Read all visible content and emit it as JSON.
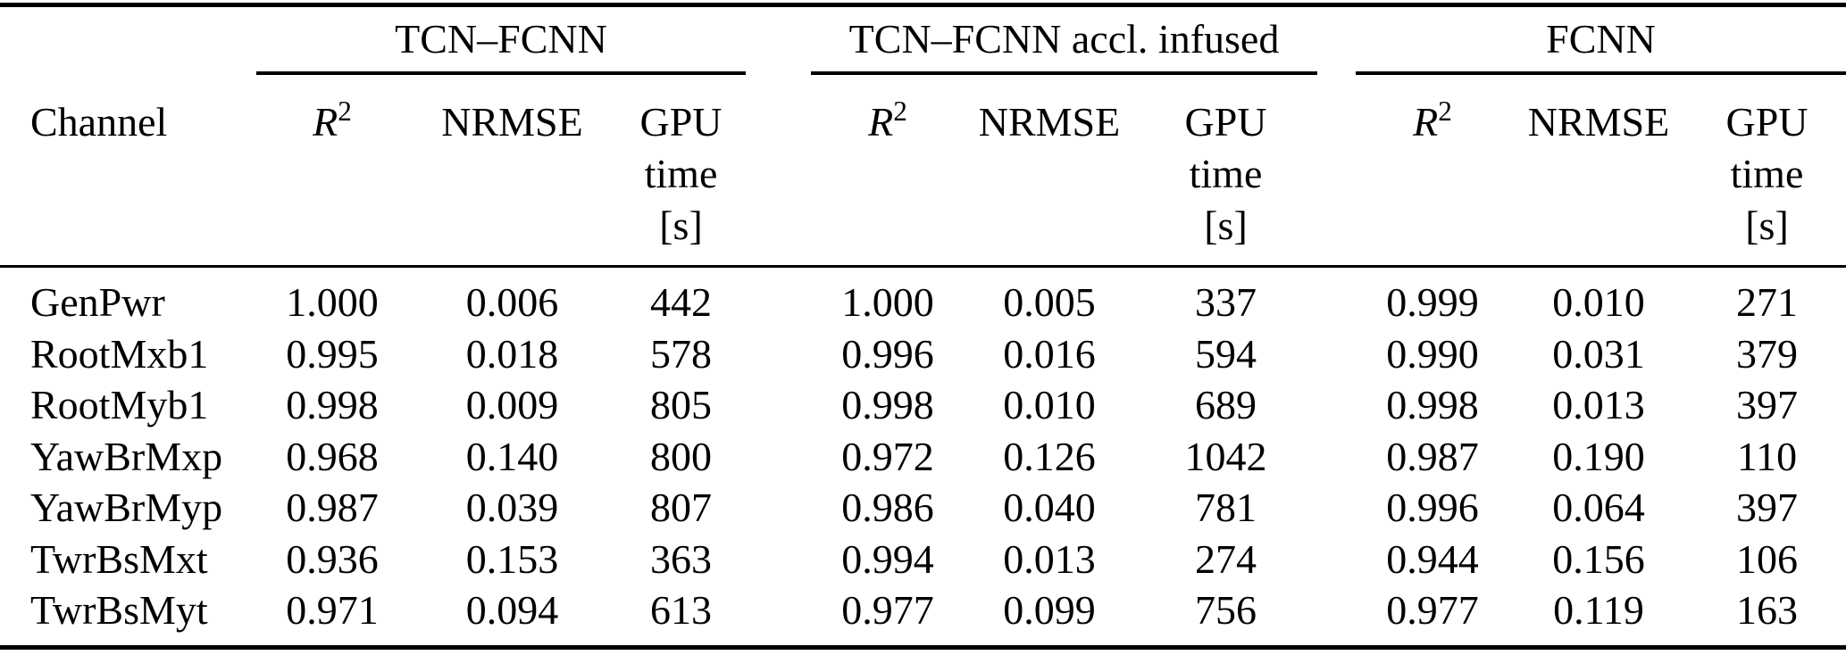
{
  "table": {
    "row_header": "Channel",
    "column_groups": [
      {
        "label": "TCN–FCNN"
      },
      {
        "label": "TCN–FCNN accl. infused"
      },
      {
        "label": "FCNN"
      }
    ],
    "sub_headers": {
      "r2_letter": "R",
      "r2_exponent": "2",
      "nrmse": "NRMSE",
      "gpu_line1": "GPU",
      "gpu_line2": "time",
      "gpu_line3": "[s]"
    },
    "rows": [
      {
        "channel": "GenPwr",
        "tcn_fcnn": {
          "r2": "1.000",
          "nrmse": "0.006",
          "gpu": "442"
        },
        "tcn_fcnn_accl": {
          "r2": "1.000",
          "nrmse": "0.005",
          "gpu": "337"
        },
        "fcnn": {
          "r2": "0.999",
          "nrmse": "0.010",
          "gpu": "271"
        }
      },
      {
        "channel": "RootMxb1",
        "tcn_fcnn": {
          "r2": "0.995",
          "nrmse": "0.018",
          "gpu": "578"
        },
        "tcn_fcnn_accl": {
          "r2": "0.996",
          "nrmse": "0.016",
          "gpu": "594"
        },
        "fcnn": {
          "r2": "0.990",
          "nrmse": "0.031",
          "gpu": "379"
        }
      },
      {
        "channel": "RootMyb1",
        "tcn_fcnn": {
          "r2": "0.998",
          "nrmse": "0.009",
          "gpu": "805"
        },
        "tcn_fcnn_accl": {
          "r2": "0.998",
          "nrmse": "0.010",
          "gpu": "689"
        },
        "fcnn": {
          "r2": "0.998",
          "nrmse": "0.013",
          "gpu": "397"
        }
      },
      {
        "channel": "YawBrMxp",
        "tcn_fcnn": {
          "r2": "0.968",
          "nrmse": "0.140",
          "gpu": "800"
        },
        "tcn_fcnn_accl": {
          "r2": "0.972",
          "nrmse": "0.126",
          "gpu": "1042"
        },
        "fcnn": {
          "r2": "0.987",
          "nrmse": "0.190",
          "gpu": "110"
        }
      },
      {
        "channel": "YawBrMyp",
        "tcn_fcnn": {
          "r2": "0.987",
          "nrmse": "0.039",
          "gpu": "807"
        },
        "tcn_fcnn_accl": {
          "r2": "0.986",
          "nrmse": "0.040",
          "gpu": "781"
        },
        "fcnn": {
          "r2": "0.996",
          "nrmse": "0.064",
          "gpu": "397"
        }
      },
      {
        "channel": "TwrBsMxt",
        "tcn_fcnn": {
          "r2": "0.936",
          "nrmse": "0.153",
          "gpu": "363"
        },
        "tcn_fcnn_accl": {
          "r2": "0.994",
          "nrmse": "0.013",
          "gpu": "274"
        },
        "fcnn": {
          "r2": "0.944",
          "nrmse": "0.156",
          "gpu": "106"
        }
      },
      {
        "channel": "TwrBsMyt",
        "tcn_fcnn": {
          "r2": "0.971",
          "nrmse": "0.094",
          "gpu": "613"
        },
        "tcn_fcnn_accl": {
          "r2": "0.977",
          "nrmse": "0.099",
          "gpu": "756"
        },
        "fcnn": {
          "r2": "0.977",
          "nrmse": "0.119",
          "gpu": "163"
        }
      }
    ]
  }
}
